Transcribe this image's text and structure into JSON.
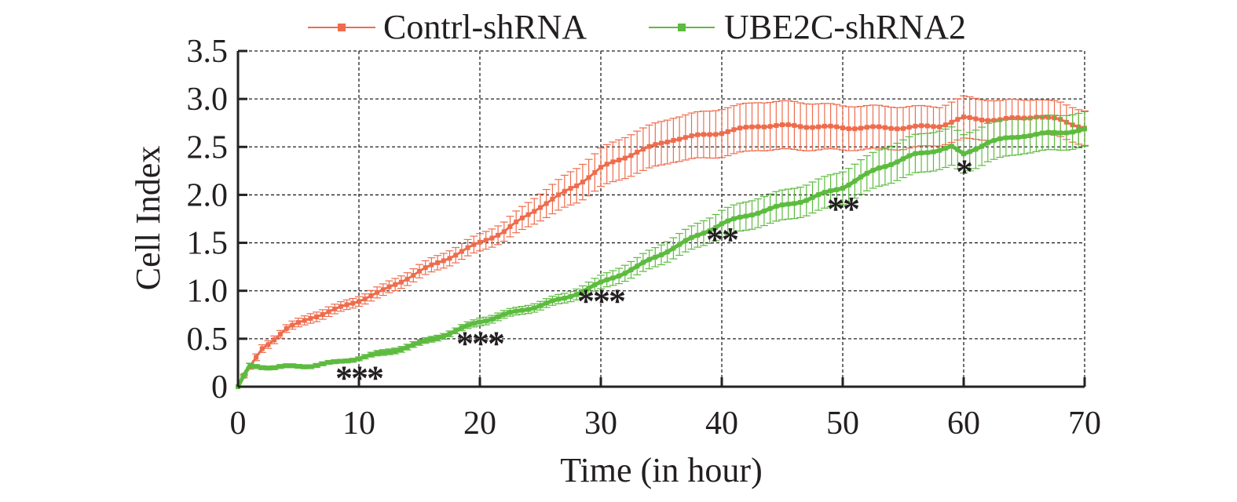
{
  "chart_data": {
    "type": "line",
    "title": "",
    "xlabel": "Time (in hour)",
    "ylabel": "Cell Index",
    "xlim": [
      0,
      70
    ],
    "ylim": [
      0,
      3.5
    ],
    "xticks": [
      0,
      10,
      20,
      30,
      40,
      50,
      60,
      70
    ],
    "xtick_labels": [
      "0",
      "10",
      "20",
      "30",
      "40",
      "50",
      "60",
      "70"
    ],
    "yticks": [
      0,
      0.5,
      1.0,
      1.5,
      2.0,
      2.5,
      3.0,
      3.5
    ],
    "ytick_labels": [
      "0",
      "0.5",
      "1.0",
      "1.5",
      "2.0",
      "2.5",
      "3.0",
      "3.5"
    ],
    "grid": true,
    "legend_position": "top-center",
    "series": [
      {
        "name": "Contrl-shRNA",
        "color": "#ee6c4d",
        "x": [
          0,
          1,
          2,
          4,
          6,
          8,
          10,
          12,
          15,
          18,
          20,
          22,
          25,
          28,
          30,
          33,
          36,
          40,
          43,
          46,
          50,
          55,
          58,
          60,
          63,
          66,
          68,
          70
        ],
        "y": [
          0,
          0.2,
          0.4,
          0.6,
          0.72,
          0.8,
          0.9,
          1.0,
          1.2,
          1.38,
          1.5,
          1.62,
          1.88,
          2.1,
          2.28,
          2.45,
          2.58,
          2.65,
          2.72,
          2.72,
          2.7,
          2.7,
          2.72,
          2.8,
          2.78,
          2.82,
          2.78,
          2.7
        ],
        "error": [
          0,
          0.03,
          0.04,
          0.04,
          0.05,
          0.05,
          0.05,
          0.06,
          0.07,
          0.08,
          0.09,
          0.1,
          0.14,
          0.18,
          0.2,
          0.22,
          0.23,
          0.25,
          0.25,
          0.25,
          0.23,
          0.22,
          0.2,
          0.22,
          0.2,
          0.18,
          0.18,
          0.18
        ]
      },
      {
        "name": "UBE2C-shRNA2",
        "color": "#5dbb3f",
        "x": [
          0,
          1,
          3,
          6,
          8,
          10,
          12,
          15,
          18,
          20,
          23,
          27,
          30,
          33,
          36,
          40,
          43,
          47,
          50,
          53,
          56,
          59,
          60,
          62,
          65,
          68,
          70
        ],
        "y": [
          0,
          0.22,
          0.2,
          0.22,
          0.25,
          0.3,
          0.35,
          0.45,
          0.58,
          0.68,
          0.78,
          0.92,
          1.08,
          1.25,
          1.45,
          1.7,
          1.82,
          1.95,
          2.08,
          2.28,
          2.42,
          2.5,
          2.42,
          2.55,
          2.62,
          2.65,
          2.68
        ],
        "error": [
          0,
          0.02,
          0.02,
          0.02,
          0.02,
          0.02,
          0.03,
          0.03,
          0.03,
          0.04,
          0.04,
          0.05,
          0.07,
          0.09,
          0.11,
          0.14,
          0.15,
          0.16,
          0.17,
          0.19,
          0.2,
          0.2,
          0.2,
          0.2,
          0.18,
          0.18,
          0.18
        ]
      }
    ],
    "annotations": [
      {
        "text": "***",
        "x": 10,
        "y": 0.12
      },
      {
        "text": "***",
        "x": 20,
        "y": 0.48
      },
      {
        "text": "***",
        "x": 30,
        "y": 0.92
      },
      {
        "text": "**",
        "x": 40,
        "y": 1.56
      },
      {
        "text": "**",
        "x": 50,
        "y": 1.88
      },
      {
        "text": "*",
        "x": 60,
        "y": 2.27
      }
    ]
  }
}
